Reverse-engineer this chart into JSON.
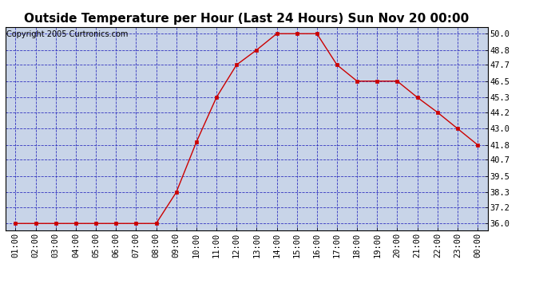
{
  "title": "Outside Temperature per Hour (Last 24 Hours) Sun Nov 20 00:00",
  "copyright": "Copyright 2005 Curtronics.com",
  "x_labels": [
    "01:00",
    "02:00",
    "03:00",
    "04:00",
    "05:00",
    "06:00",
    "07:00",
    "08:00",
    "09:00",
    "10:00",
    "11:00",
    "12:00",
    "13:00",
    "14:00",
    "15:00",
    "16:00",
    "17:00",
    "18:00",
    "19:00",
    "20:00",
    "21:00",
    "22:00",
    "23:00",
    "00:00"
  ],
  "y_values": [
    36.0,
    36.0,
    36.0,
    36.0,
    36.0,
    36.0,
    36.0,
    36.0,
    38.3,
    42.0,
    45.3,
    47.7,
    48.8,
    50.0,
    50.0,
    50.0,
    47.7,
    46.5,
    46.5,
    46.5,
    45.3,
    44.2,
    43.0,
    41.8
  ],
  "y_ticks": [
    36.0,
    37.2,
    38.3,
    39.5,
    40.7,
    41.8,
    43.0,
    44.2,
    45.3,
    46.5,
    47.7,
    48.8,
    50.0
  ],
  "ylim": [
    35.5,
    50.5
  ],
  "line_color": "#cc0000",
  "marker": "s",
  "marker_size": 2.5,
  "bg_color": "#c8d4e8",
  "fig_bg_color": "#ffffff",
  "grid_color": "#2222bb",
  "title_fontsize": 11,
  "copyright_fontsize": 7,
  "tick_fontsize": 7.5,
  "tick_color": "#000000"
}
